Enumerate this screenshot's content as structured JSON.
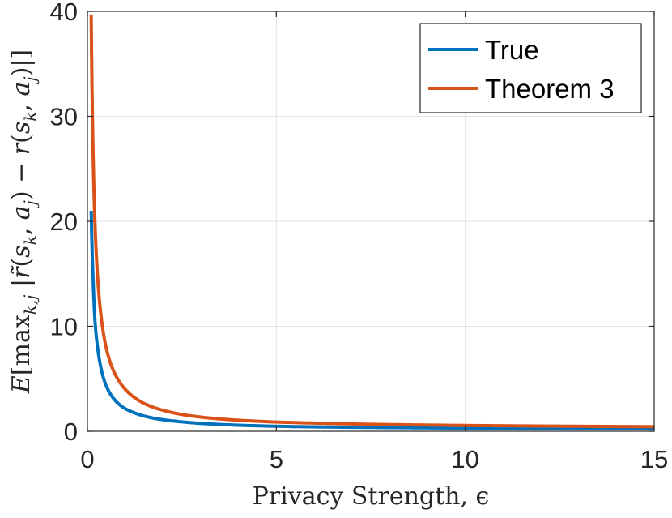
{
  "chart_data": {
    "type": "line",
    "title": "",
    "xlabel": "Privacy Strength, ϵ",
    "ylabel": "E[max_{k,j} |r̃(s_k, a_j) − r(s_k, a_j)|]",
    "xlim": [
      0,
      15
    ],
    "ylim": [
      0,
      40
    ],
    "xticks": [
      0,
      5,
      10,
      15
    ],
    "yticks": [
      0,
      10,
      20,
      30,
      40
    ],
    "xtick_labels": [
      "0",
      "5",
      "10",
      "15"
    ],
    "ytick_labels": [
      "0",
      "10",
      "20",
      "30",
      "40"
    ],
    "grid": true,
    "legend_position": "top-right",
    "series": [
      {
        "name": "True",
        "color": "#0072BD",
        "x": [
          0.1,
          0.15,
          0.2,
          0.3,
          0.4,
          0.5,
          0.6,
          0.8,
          1,
          1.25,
          1.5,
          2,
          2.5,
          3,
          4,
          5,
          6,
          7,
          8,
          10,
          12,
          15
        ],
        "y": [
          21,
          14.5,
          10.5,
          7.2,
          5.4,
          4.3,
          3.6,
          2.7,
          2.15,
          1.75,
          1.45,
          1.1,
          0.9,
          0.75,
          0.58,
          0.48,
          0.42,
          0.38,
          0.35,
          0.3,
          0.27,
          0.23
        ]
      },
      {
        "name": "Theorem 3",
        "color": "#D95319",
        "x": [
          0.1,
          0.15,
          0.2,
          0.3,
          0.4,
          0.5,
          0.6,
          0.8,
          1,
          1.25,
          1.5,
          2,
          2.5,
          3,
          4,
          5,
          6,
          7,
          8,
          10,
          12,
          15
        ],
        "y": [
          39.7,
          26.5,
          19.8,
          13.2,
          9.9,
          7.9,
          6.6,
          5.0,
          4.0,
          3.2,
          2.65,
          2.0,
          1.6,
          1.35,
          1.05,
          0.88,
          0.78,
          0.7,
          0.64,
          0.56,
          0.5,
          0.44
        ]
      }
    ]
  }
}
